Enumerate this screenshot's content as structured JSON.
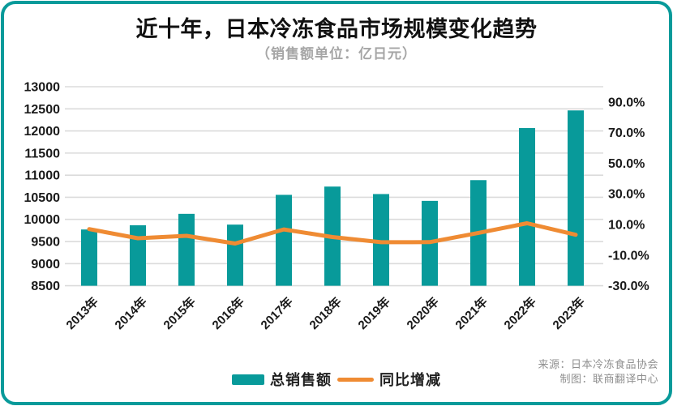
{
  "card": {
    "title": "近十年，日本冷冻食品市场规模变化趋势",
    "subtitle": "（销售额单位：亿日元）",
    "source_line1": "来源：日本冷冻食品协会",
    "source_line2": "制图：联商翻译中心"
  },
  "legend": {
    "bar_label": "总销售额",
    "line_label": "同比增减"
  },
  "colors": {
    "teal": "#089A9A",
    "orange": "#EF8B33",
    "gridline": "#DBDBDB",
    "axis_text": "#1A1A1A",
    "subtitle_gray": "#A6A6A6",
    "source_gray": "#8F8F8F"
  },
  "chart_data": {
    "type": "bar",
    "subtype": "bar-line-combo",
    "title": "近十年，日本冷冻食品市场规模变化趋势",
    "subtitle": "（销售额单位：亿日元）",
    "categories": [
      "2013年",
      "2014年",
      "2015年",
      "2016年",
      "2017年",
      "2018年",
      "2019年",
      "2020年",
      "2021年",
      "2022年",
      "2023年"
    ],
    "series": [
      {
        "name": "总销售额",
        "type": "bar",
        "axis": "left",
        "unit": "亿日元",
        "values": [
          9772,
          9867,
          10126,
          9882,
          10555,
          10742,
          10573,
          10419,
          10888,
          12065,
          12464
        ]
      },
      {
        "name": "同比增减",
        "type": "line",
        "axis": "right",
        "unit": "%",
        "values": [
          7.0,
          1.0,
          2.6,
          -2.4,
          6.8,
          1.8,
          -1.6,
          -1.5,
          4.5,
          10.8,
          3.3
        ]
      }
    ],
    "left_axis": {
      "min": 8500,
      "max": 13000,
      "tick_step": 500,
      "tick_labels": [
        "8500",
        "9000",
        "9500",
        "10000",
        "10500",
        "11000",
        "11500",
        "12000",
        "12500",
        "13000"
      ]
    },
    "right_axis": {
      "min": -30,
      "max": 100,
      "tick_step": 20,
      "tick_labels": [
        "-30.0%",
        "-10.0%",
        "10.0%",
        "30.0%",
        "50.0%",
        "70.0%",
        "90.0%"
      ]
    },
    "grid": true,
    "legend_position": "bottom",
    "xlabel": "",
    "ylabel": ""
  }
}
